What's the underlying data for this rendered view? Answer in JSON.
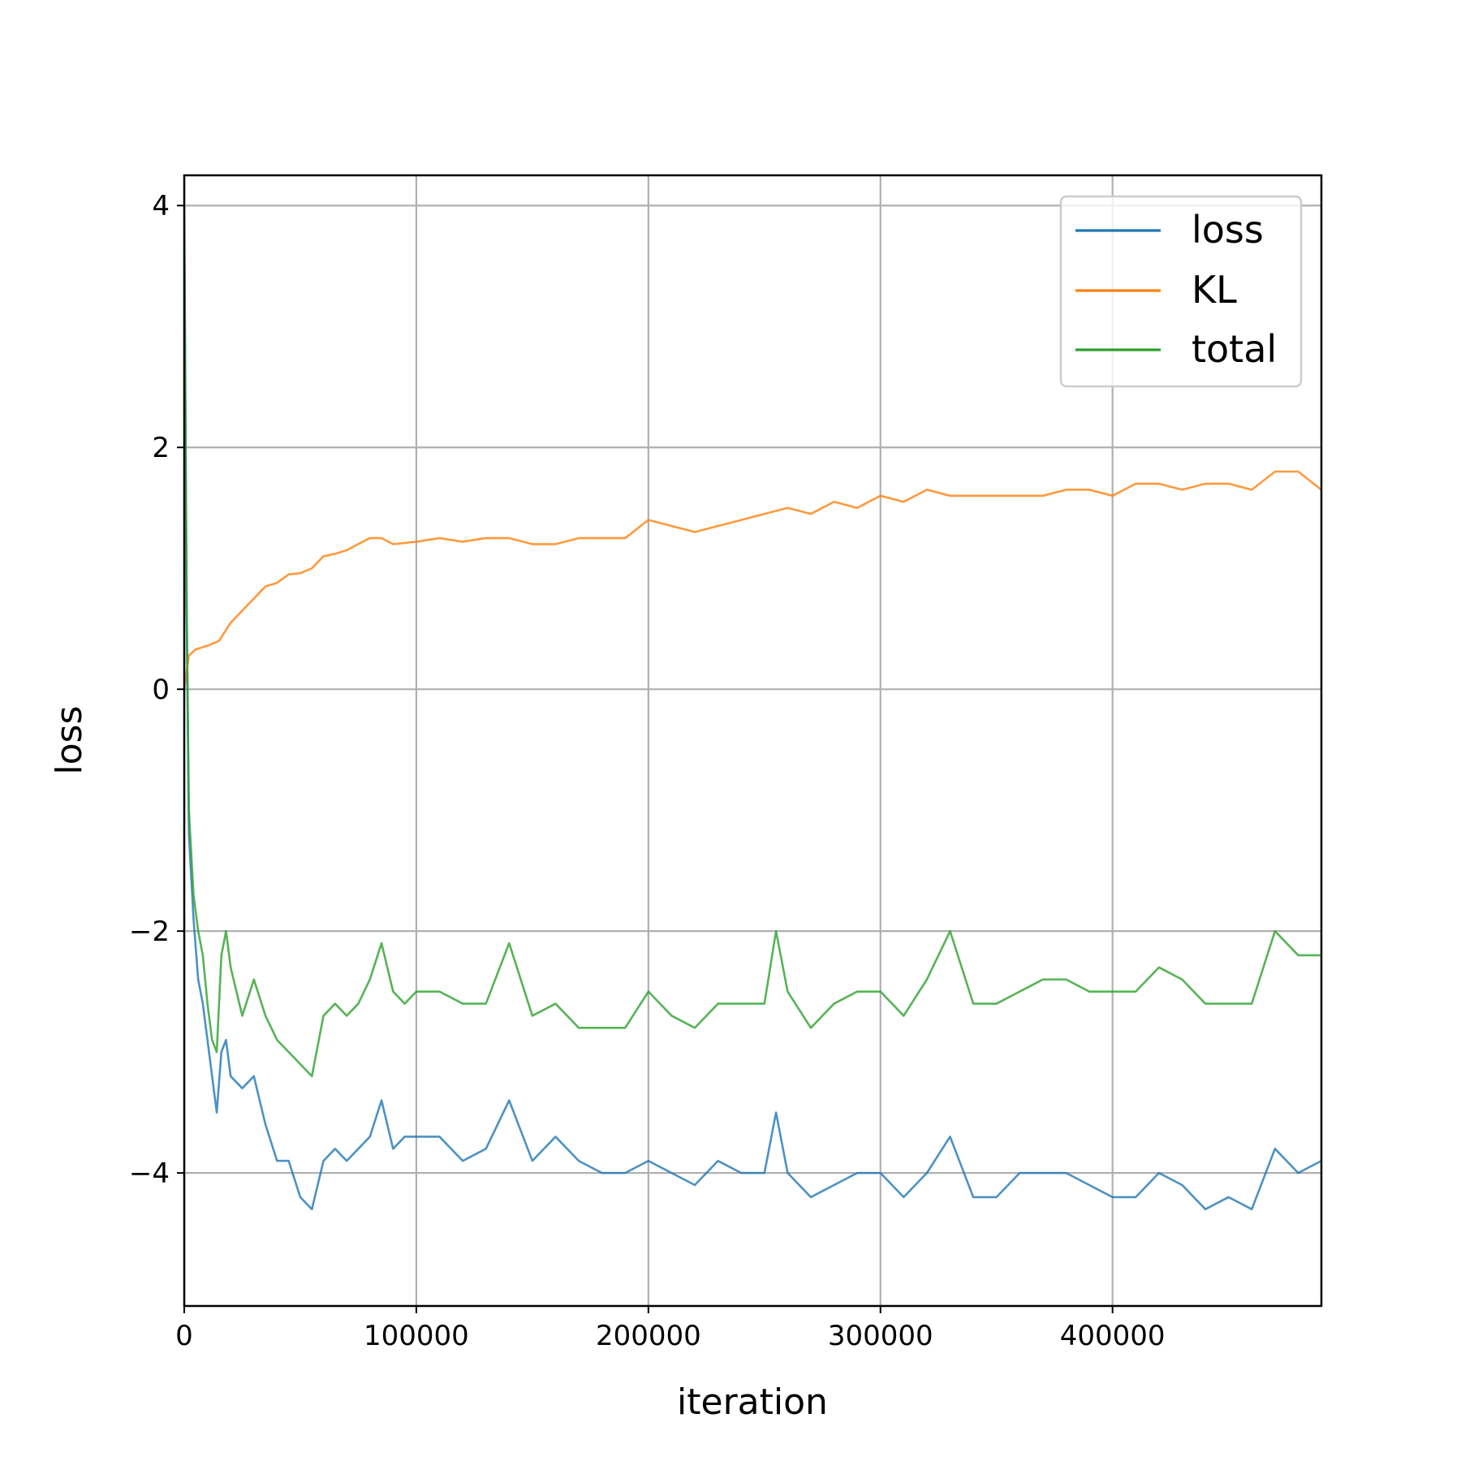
{
  "chart_data": {
    "type": "line",
    "title": "",
    "xlabel": "iteration",
    "ylabel": "loss",
    "xlim": [
      0,
      490000
    ],
    "ylim": [
      -5.1,
      4.25
    ],
    "x_ticks": [
      0,
      100000,
      200000,
      300000,
      400000
    ],
    "x_tick_labels": [
      "0",
      "100000",
      "200000",
      "300000",
      "400000"
    ],
    "y_ticks": [
      4,
      2,
      0,
      -2,
      -4
    ],
    "y_tick_labels": [
      "4",
      "2",
      "0",
      "−2",
      "−4"
    ],
    "grid": true,
    "legend_position": "top-right",
    "series": [
      {
        "name": "loss",
        "color": "#1f77b4",
        "points": [
          [
            0,
            4.0
          ],
          [
            1000,
            0.8
          ],
          [
            2000,
            -1.2
          ],
          [
            4000,
            -1.9
          ],
          [
            6000,
            -2.4
          ],
          [
            8000,
            -2.6
          ],
          [
            10000,
            -2.9
          ],
          [
            12000,
            -3.2
          ],
          [
            14000,
            -3.5
          ],
          [
            16000,
            -3.0
          ],
          [
            18000,
            -2.9
          ],
          [
            20000,
            -3.2
          ],
          [
            25000,
            -3.3
          ],
          [
            30000,
            -3.2
          ],
          [
            35000,
            -3.6
          ],
          [
            40000,
            -3.9
          ],
          [
            45000,
            -3.9
          ],
          [
            50000,
            -4.2
          ],
          [
            55000,
            -4.3
          ],
          [
            60000,
            -3.9
          ],
          [
            65000,
            -3.8
          ],
          [
            70000,
            -3.9
          ],
          [
            75000,
            -3.8
          ],
          [
            80000,
            -3.7
          ],
          [
            85000,
            -3.4
          ],
          [
            90000,
            -3.8
          ],
          [
            95000,
            -3.7
          ],
          [
            100000,
            -3.7
          ],
          [
            110000,
            -3.7
          ],
          [
            120000,
            -3.9
          ],
          [
            130000,
            -3.8
          ],
          [
            140000,
            -3.4
          ],
          [
            150000,
            -3.9
          ],
          [
            160000,
            -3.7
          ],
          [
            170000,
            -3.9
          ],
          [
            180000,
            -4.0
          ],
          [
            190000,
            -4.0
          ],
          [
            200000,
            -3.9
          ],
          [
            210000,
            -4.0
          ],
          [
            220000,
            -4.1
          ],
          [
            230000,
            -3.9
          ],
          [
            240000,
            -4.0
          ],
          [
            250000,
            -4.0
          ],
          [
            255000,
            -3.5
          ],
          [
            260000,
            -4.0
          ],
          [
            270000,
            -4.2
          ],
          [
            280000,
            -4.1
          ],
          [
            290000,
            -4.0
          ],
          [
            300000,
            -4.0
          ],
          [
            310000,
            -4.2
          ],
          [
            320000,
            -4.0
          ],
          [
            330000,
            -3.7
          ],
          [
            340000,
            -4.2
          ],
          [
            350000,
            -4.2
          ],
          [
            360000,
            -4.0
          ],
          [
            370000,
            -4.0
          ],
          [
            380000,
            -4.0
          ],
          [
            390000,
            -4.1
          ],
          [
            400000,
            -4.2
          ],
          [
            410000,
            -4.2
          ],
          [
            420000,
            -4.0
          ],
          [
            430000,
            -4.1
          ],
          [
            440000,
            -4.3
          ],
          [
            450000,
            -4.2
          ],
          [
            460000,
            -4.3
          ],
          [
            470000,
            -3.8
          ],
          [
            480000,
            -4.0
          ],
          [
            490000,
            -3.9
          ]
        ]
      },
      {
        "name": "KL",
        "color": "#ff7f0e",
        "points": [
          [
            0,
            0.0
          ],
          [
            2000,
            0.28
          ],
          [
            5000,
            0.33
          ],
          [
            10000,
            0.36
          ],
          [
            15000,
            0.4
          ],
          [
            20000,
            0.55
          ],
          [
            25000,
            0.65
          ],
          [
            30000,
            0.75
          ],
          [
            35000,
            0.85
          ],
          [
            40000,
            0.88
          ],
          [
            45000,
            0.95
          ],
          [
            50000,
            0.96
          ],
          [
            55000,
            1.0
          ],
          [
            60000,
            1.1
          ],
          [
            65000,
            1.12
          ],
          [
            70000,
            1.15
          ],
          [
            75000,
            1.2
          ],
          [
            80000,
            1.25
          ],
          [
            85000,
            1.25
          ],
          [
            90000,
            1.2
          ],
          [
            100000,
            1.22
          ],
          [
            110000,
            1.25
          ],
          [
            120000,
            1.22
          ],
          [
            130000,
            1.25
          ],
          [
            140000,
            1.25
          ],
          [
            150000,
            1.2
          ],
          [
            160000,
            1.2
          ],
          [
            170000,
            1.25
          ],
          [
            180000,
            1.25
          ],
          [
            190000,
            1.25
          ],
          [
            200000,
            1.4
          ],
          [
            210000,
            1.35
          ],
          [
            220000,
            1.3
          ],
          [
            230000,
            1.35
          ],
          [
            240000,
            1.4
          ],
          [
            250000,
            1.45
          ],
          [
            260000,
            1.5
          ],
          [
            270000,
            1.45
          ],
          [
            280000,
            1.55
          ],
          [
            290000,
            1.5
          ],
          [
            300000,
            1.6
          ],
          [
            310000,
            1.55
          ],
          [
            320000,
            1.65
          ],
          [
            330000,
            1.6
          ],
          [
            340000,
            1.6
          ],
          [
            350000,
            1.6
          ],
          [
            360000,
            1.6
          ],
          [
            370000,
            1.6
          ],
          [
            380000,
            1.65
          ],
          [
            390000,
            1.65
          ],
          [
            400000,
            1.6
          ],
          [
            410000,
            1.7
          ],
          [
            420000,
            1.7
          ],
          [
            430000,
            1.65
          ],
          [
            440000,
            1.7
          ],
          [
            450000,
            1.7
          ],
          [
            460000,
            1.65
          ],
          [
            470000,
            1.8
          ],
          [
            480000,
            1.8
          ],
          [
            490000,
            1.65
          ]
        ]
      },
      {
        "name": "total",
        "color": "#2ca02c",
        "points": [
          [
            0,
            3.8
          ],
          [
            1000,
            0.7
          ],
          [
            2000,
            -1.0
          ],
          [
            4000,
            -1.7
          ],
          [
            6000,
            -2.0
          ],
          [
            8000,
            -2.2
          ],
          [
            10000,
            -2.6
          ],
          [
            12000,
            -2.9
          ],
          [
            14000,
            -3.0
          ],
          [
            16000,
            -2.2
          ],
          [
            18000,
            -2.0
          ],
          [
            20000,
            -2.3
          ],
          [
            25000,
            -2.7
          ],
          [
            30000,
            -2.4
          ],
          [
            35000,
            -2.7
          ],
          [
            40000,
            -2.9
          ],
          [
            45000,
            -3.0
          ],
          [
            50000,
            -3.1
          ],
          [
            55000,
            -3.2
          ],
          [
            60000,
            -2.7
          ],
          [
            65000,
            -2.6
          ],
          [
            70000,
            -2.7
          ],
          [
            75000,
            -2.6
          ],
          [
            80000,
            -2.4
          ],
          [
            85000,
            -2.1
          ],
          [
            90000,
            -2.5
          ],
          [
            95000,
            -2.6
          ],
          [
            100000,
            -2.5
          ],
          [
            110000,
            -2.5
          ],
          [
            120000,
            -2.6
          ],
          [
            130000,
            -2.6
          ],
          [
            140000,
            -2.1
          ],
          [
            150000,
            -2.7
          ],
          [
            160000,
            -2.6
          ],
          [
            170000,
            -2.8
          ],
          [
            180000,
            -2.8
          ],
          [
            190000,
            -2.8
          ],
          [
            200000,
            -2.5
          ],
          [
            210000,
            -2.7
          ],
          [
            220000,
            -2.8
          ],
          [
            230000,
            -2.6
          ],
          [
            240000,
            -2.6
          ],
          [
            250000,
            -2.6
          ],
          [
            255000,
            -2.0
          ],
          [
            260000,
            -2.5
          ],
          [
            270000,
            -2.8
          ],
          [
            280000,
            -2.6
          ],
          [
            290000,
            -2.5
          ],
          [
            300000,
            -2.5
          ],
          [
            310000,
            -2.7
          ],
          [
            320000,
            -2.4
          ],
          [
            330000,
            -2.0
          ],
          [
            340000,
            -2.6
          ],
          [
            350000,
            -2.6
          ],
          [
            360000,
            -2.5
          ],
          [
            370000,
            -2.4
          ],
          [
            380000,
            -2.4
          ],
          [
            390000,
            -2.5
          ],
          [
            400000,
            -2.5
          ],
          [
            410000,
            -2.5
          ],
          [
            420000,
            -2.3
          ],
          [
            430000,
            -2.4
          ],
          [
            440000,
            -2.6
          ],
          [
            450000,
            -2.6
          ],
          [
            460000,
            -2.6
          ],
          [
            470000,
            -2.0
          ],
          [
            480000,
            -2.2
          ],
          [
            490000,
            -2.2
          ]
        ]
      }
    ]
  }
}
